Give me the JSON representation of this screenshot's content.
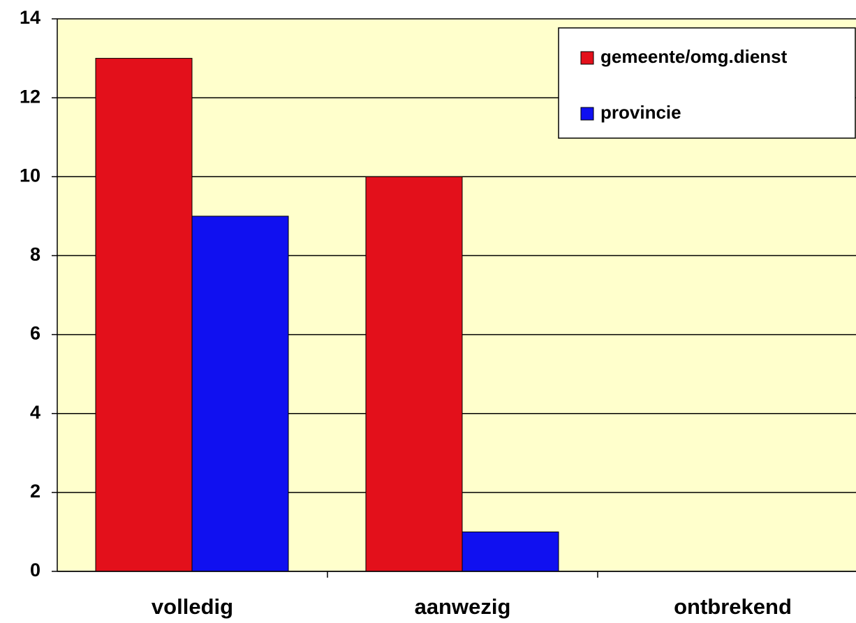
{
  "chart_data": {
    "type": "bar",
    "categories": [
      "volledig",
      "aanwezig",
      "ontbrekend"
    ],
    "series": [
      {
        "name": "gemeente/omg.dienst",
        "color": "#e3101b",
        "values": [
          13,
          10,
          0
        ]
      },
      {
        "name": "provincie",
        "color": "#1010f0",
        "values": [
          9,
          1,
          0
        ]
      }
    ],
    "ylim": [
      0,
      14
    ],
    "yticks": [
      0,
      2,
      4,
      6,
      8,
      10,
      12,
      14
    ],
    "grid": true,
    "legend": "top-right"
  }
}
